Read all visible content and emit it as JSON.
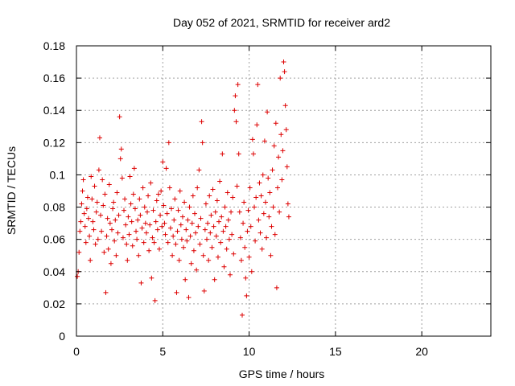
{
  "chart_data": {
    "type": "scatter",
    "title": "Day 052 of 2021, SRMTID for receiver ard2",
    "xlabel": "GPS time / hours",
    "ylabel": "SRMTID / TECUs",
    "xlim": [
      0,
      24
    ],
    "ylim": [
      0,
      0.18
    ],
    "xticks": [
      0,
      5,
      10,
      15,
      20
    ],
    "xtick_labels": [
      "0",
      "5",
      "10",
      "15",
      "20"
    ],
    "yticks": [
      0,
      0.02,
      0.04,
      0.06,
      0.08,
      0.1,
      0.12,
      0.14,
      0.16,
      0.18
    ],
    "ytick_labels": [
      "0",
      "0.02",
      "0.04",
      "0.06",
      "0.08",
      "0.1",
      "0.12",
      "0.14",
      "0.16",
      "0.18"
    ],
    "grid": true,
    "marker": "+",
    "color": "#dd0000",
    "series": [
      {
        "name": "SRMTID",
        "points": [
          [
            0.05,
            0.037
          ],
          [
            0.1,
            0.04
          ],
          [
            0.15,
            0.052
          ],
          [
            0.2,
            0.065
          ],
          [
            0.25,
            0.071
          ],
          [
            0.3,
            0.082
          ],
          [
            0.35,
            0.09
          ],
          [
            0.4,
            0.097
          ],
          [
            0.45,
            0.076
          ],
          [
            0.5,
            0.068
          ],
          [
            0.55,
            0.058
          ],
          [
            0.6,
            0.079
          ],
          [
            0.65,
            0.086
          ],
          [
            0.7,
            0.073
          ],
          [
            0.75,
            0.062
          ],
          [
            0.8,
            0.047
          ],
          [
            0.85,
            0.099
          ],
          [
            0.9,
            0.085
          ],
          [
            0.95,
            0.071
          ],
          [
            1.0,
            0.066
          ],
          [
            1.05,
            0.093
          ],
          [
            1.1,
            0.057
          ],
          [
            1.15,
            0.077
          ],
          [
            1.2,
            0.083
          ],
          [
            1.25,
            0.06
          ],
          [
            1.3,
            0.103
          ],
          [
            1.35,
            0.123
          ],
          [
            1.4,
            0.075
          ],
          [
            1.45,
            0.065
          ],
          [
            1.5,
            0.097
          ],
          [
            1.55,
            0.081
          ],
          [
            1.6,
            0.052
          ],
          [
            1.65,
            0.088
          ],
          [
            1.7,
            0.027
          ],
          [
            1.75,
            0.062
          ],
          [
            1.8,
            0.073
          ],
          [
            1.85,
            0.054
          ],
          [
            1.9,
            0.094
          ],
          [
            1.95,
            0.07
          ],
          [
            2.0,
            0.045
          ],
          [
            2.05,
            0.066
          ],
          [
            2.1,
            0.079
          ],
          [
            2.15,
            0.083
          ],
          [
            2.2,
            0.059
          ],
          [
            2.25,
            0.072
          ],
          [
            2.3,
            0.05
          ],
          [
            2.35,
            0.089
          ],
          [
            2.4,
            0.064
          ],
          [
            2.45,
            0.075
          ],
          [
            2.5,
            0.136
          ],
          [
            2.55,
            0.11
          ],
          [
            2.6,
            0.116
          ],
          [
            2.65,
            0.098
          ],
          [
            2.7,
            0.061
          ],
          [
            2.75,
            0.078
          ],
          [
            2.8,
            0.085
          ],
          [
            2.85,
            0.069
          ],
          [
            2.9,
            0.057
          ],
          [
            2.95,
            0.047
          ],
          [
            3.0,
            0.074
          ],
          [
            3.05,
            0.063
          ],
          [
            3.1,
            0.099
          ],
          [
            3.15,
            0.082
          ],
          [
            3.2,
            0.071
          ],
          [
            3.25,
            0.056
          ],
          [
            3.3,
            0.088
          ],
          [
            3.35,
            0.104
          ],
          [
            3.4,
            0.079
          ],
          [
            3.45,
            0.065
          ],
          [
            3.5,
            0.06
          ],
          [
            3.55,
            0.072
          ],
          [
            3.6,
            0.05
          ],
          [
            3.65,
            0.085
          ],
          [
            3.7,
            0.075
          ],
          [
            3.75,
            0.033
          ],
          [
            3.8,
            0.067
          ],
          [
            3.85,
            0.092
          ],
          [
            3.9,
            0.058
          ],
          [
            3.95,
            0.08
          ],
          [
            4.0,
            0.07
          ],
          [
            4.05,
            0.064
          ],
          [
            4.1,
            0.077
          ],
          [
            4.15,
            0.087
          ],
          [
            4.2,
            0.053
          ],
          [
            4.25,
            0.069
          ],
          [
            4.3,
            0.095
          ],
          [
            4.35,
            0.036
          ],
          [
            4.4,
            0.061
          ],
          [
            4.45,
            0.078
          ],
          [
            4.5,
            0.058
          ],
          [
            4.55,
            0.022
          ],
          [
            4.6,
            0.071
          ],
          [
            4.65,
            0.084
          ],
          [
            4.7,
            0.066
          ],
          [
            4.75,
            0.088
          ],
          [
            4.8,
            0.054
          ],
          [
            4.85,
            0.075
          ],
          [
            4.9,
            0.09
          ],
          [
            4.95,
            0.068
          ],
          [
            5.0,
            0.108
          ],
          [
            5.05,
            0.081
          ],
          [
            5.1,
            0.07
          ],
          [
            5.15,
            0.063
          ],
          [
            5.2,
            0.104
          ],
          [
            5.25,
            0.076
          ],
          [
            5.3,
            0.058
          ],
          [
            5.35,
            0.12
          ],
          [
            5.4,
            0.092
          ],
          [
            5.45,
            0.067
          ],
          [
            5.5,
            0.079
          ],
          [
            5.55,
            0.05
          ],
          [
            5.6,
            0.062
          ],
          [
            5.65,
            0.072
          ],
          [
            5.7,
            0.085
          ],
          [
            5.75,
            0.057
          ],
          [
            5.8,
            0.027
          ],
          [
            5.85,
            0.065
          ],
          [
            5.9,
            0.078
          ],
          [
            5.95,
            0.047
          ],
          [
            6.0,
            0.09
          ],
          [
            6.05,
            0.069
          ],
          [
            6.1,
            0.06
          ],
          [
            6.15,
            0.074
          ],
          [
            6.2,
            0.055
          ],
          [
            6.25,
            0.083
          ],
          [
            6.3,
            0.035
          ],
          [
            6.35,
            0.066
          ],
          [
            6.4,
            0.059
          ],
          [
            6.45,
            0.072
          ],
          [
            6.5,
            0.024
          ],
          [
            6.55,
            0.08
          ],
          [
            6.6,
            0.062
          ],
          [
            6.65,
            0.045
          ],
          [
            6.7,
            0.07
          ],
          [
            6.75,
            0.087
          ],
          [
            6.8,
            0.053
          ],
          [
            6.85,
            0.076
          ],
          [
            6.9,
            0.064
          ],
          [
            6.95,
            0.041
          ],
          [
            7.0,
            0.092
          ],
          [
            7.05,
            0.068
          ],
          [
            7.1,
            0.103
          ],
          [
            7.15,
            0.057
          ],
          [
            7.2,
            0.073
          ],
          [
            7.25,
            0.133
          ],
          [
            7.3,
            0.12
          ],
          [
            7.35,
            0.05
          ],
          [
            7.4,
            0.028
          ],
          [
            7.45,
            0.066
          ],
          [
            7.5,
            0.082
          ],
          [
            7.55,
            0.06
          ],
          [
            7.6,
            0.07
          ],
          [
            7.65,
            0.047
          ],
          [
            7.7,
            0.087
          ],
          [
            7.75,
            0.064
          ],
          [
            7.8,
            0.075
          ],
          [
            7.85,
            0.055
          ],
          [
            7.9,
            0.091
          ],
          [
            7.95,
            0.068
          ],
          [
            8.0,
            0.035
          ],
          [
            8.05,
            0.077
          ],
          [
            8.1,
            0.062
          ],
          [
            8.15,
            0.084
          ],
          [
            8.2,
            0.049
          ],
          [
            8.25,
            0.071
          ],
          [
            8.3,
            0.096
          ],
          [
            8.35,
            0.058
          ],
          [
            8.4,
            0.074
          ],
          [
            8.45,
            0.113
          ],
          [
            8.5,
            0.065
          ],
          [
            8.55,
            0.043
          ],
          [
            8.6,
            0.08
          ],
          [
            8.65,
            0.068
          ],
          [
            8.7,
            0.054
          ],
          [
            8.75,
            0.089
          ],
          [
            8.8,
            0.072
          ],
          [
            8.85,
            0.06
          ],
          [
            8.9,
            0.038
          ],
          [
            8.95,
            0.077
          ],
          [
            9.0,
            0.063
          ],
          [
            9.05,
            0.086
          ],
          [
            9.1,
            0.051
          ],
          [
            9.15,
            0.14
          ],
          [
            9.2,
            0.149
          ],
          [
            9.25,
            0.133
          ],
          [
            9.3,
            0.093
          ],
          [
            9.35,
            0.156
          ],
          [
            9.4,
            0.113
          ],
          [
            9.45,
            0.077
          ],
          [
            9.5,
            0.061
          ],
          [
            9.55,
            0.047
          ],
          [
            9.6,
            0.013
          ],
          [
            9.65,
            0.07
          ],
          [
            9.7,
            0.083
          ],
          [
            9.75,
            0.055
          ],
          [
            9.8,
            0.036
          ],
          [
            9.85,
            0.025
          ],
          [
            9.9,
            0.065
          ],
          [
            9.95,
            0.078
          ],
          [
            10.0,
            0.049
          ],
          [
            10.05,
            0.092
          ],
          [
            10.1,
            0.068
          ],
          [
            10.15,
            0.04
          ],
          [
            10.2,
            0.122
          ],
          [
            10.25,
            0.113
          ],
          [
            10.3,
            0.08
          ],
          [
            10.35,
            0.059
          ],
          [
            10.4,
            0.086
          ],
          [
            10.45,
            0.131
          ],
          [
            10.5,
            0.156
          ],
          [
            10.55,
            0.072
          ],
          [
            10.6,
            0.095
          ],
          [
            10.65,
            0.064
          ],
          [
            10.7,
            0.087
          ],
          [
            10.75,
            0.054
          ],
          [
            10.8,
            0.1
          ],
          [
            10.85,
            0.076
          ],
          [
            10.9,
            0.121
          ],
          [
            10.95,
            0.083
          ],
          [
            11.0,
            0.061
          ],
          [
            11.05,
            0.139
          ],
          [
            11.1,
            0.098
          ],
          [
            11.15,
            0.074
          ],
          [
            11.2,
            0.089
          ],
          [
            11.25,
            0.05
          ],
          [
            11.3,
            0.068
          ],
          [
            11.35,
            0.103
          ],
          [
            11.4,
            0.08
          ],
          [
            11.45,
            0.118
          ],
          [
            11.5,
            0.063
          ],
          [
            11.55,
            0.132
          ],
          [
            11.6,
            0.03
          ],
          [
            11.65,
            0.092
          ],
          [
            11.7,
            0.111
          ],
          [
            11.75,
            0.077
          ],
          [
            11.8,
            0.16
          ],
          [
            11.85,
            0.125
          ],
          [
            11.9,
            0.097
          ],
          [
            11.95,
            0.115
          ],
          [
            12.0,
            0.17
          ],
          [
            12.05,
            0.164
          ],
          [
            12.1,
            0.143
          ],
          [
            12.15,
            0.128
          ],
          [
            12.2,
            0.105
          ],
          [
            12.25,
            0.082
          ],
          [
            12.3,
            0.074
          ]
        ]
      }
    ]
  }
}
